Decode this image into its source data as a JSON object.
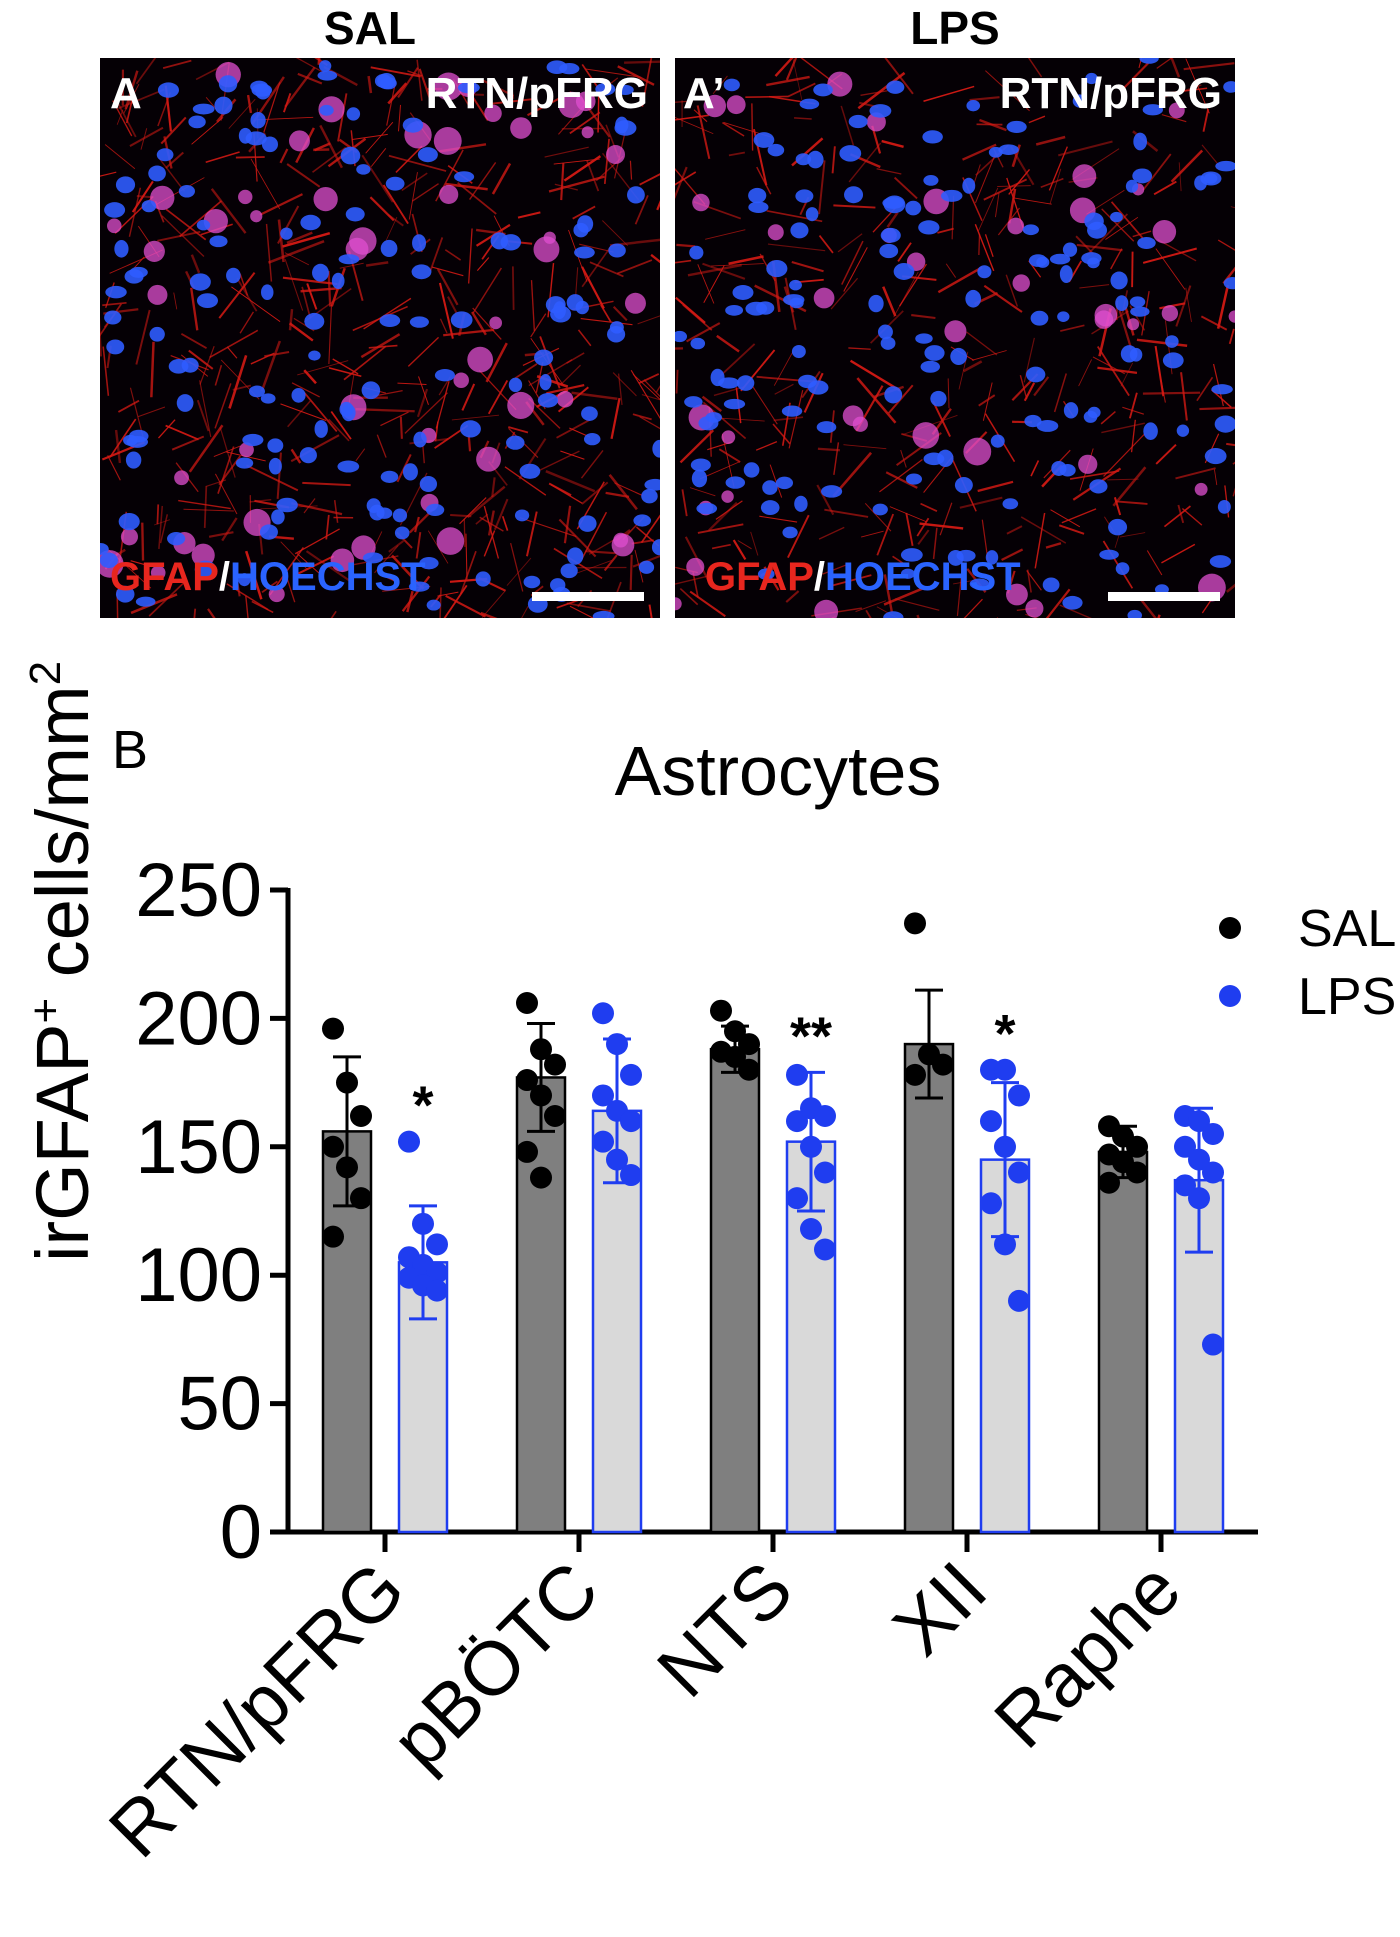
{
  "panel_a": {
    "left": {
      "condition": "SAL",
      "letter": "A",
      "region": "RTN/pFRG",
      "stain_red": "GFAP",
      "stain_sep": "/",
      "stain_blue": "HOECHST"
    },
    "right": {
      "condition": "LPS",
      "letter": "A’",
      "region": "RTN/pFRG",
      "stain_red": "GFAP",
      "stain_sep": "/",
      "stain_blue": "HOECHST"
    },
    "colors": {
      "stain_red": "#e8261e",
      "stain_blue": "#2a63ff",
      "nuclei": "#2f5cff",
      "fibers": "#d51a14",
      "background": "#050005"
    }
  },
  "panel_b_letter": "B",
  "chart_data": {
    "type": "bar",
    "title": "Astrocytes",
    "ylabel": "irGFAP⁺ cells/mm²",
    "ylabel_main": "irGFAP",
    "ylabel_sup1": "+",
    "ylabel_mid": " cells/mm",
    "ylabel_sup2": "2",
    "xlabel": "",
    "ylim": [
      0,
      250
    ],
    "yticks": [
      0,
      50,
      100,
      150,
      200,
      250
    ],
    "legend_position": "top-right",
    "categories": [
      "RTN/pFRG",
      "pBÖTC",
      "NTS",
      "XII",
      "Raphe"
    ],
    "series": [
      {
        "name": "SAL",
        "color": "#000000",
        "bar_color": "#7f7f7f",
        "bar_edge": "#000000",
        "values": [
          156,
          177,
          188,
          190,
          148
        ],
        "errors": [
          29,
          21,
          9,
          21,
          10
        ],
        "points": [
          [
            196,
            175,
            162,
            150,
            142,
            130,
            115
          ],
          [
            206,
            188,
            182,
            176,
            170,
            162,
            148,
            138
          ],
          [
            203,
            195,
            190,
            187,
            185,
            180
          ],
          [
            237,
            186,
            182,
            178
          ],
          [
            158,
            154,
            150,
            147,
            144,
            140,
            136
          ]
        ]
      },
      {
        "name": "LPS",
        "color": "#1f3df0",
        "bar_color": "#d9d9d9",
        "bar_edge": "#1f3df0",
        "values": [
          105,
          164,
          152,
          145,
          137
        ],
        "errors": [
          22,
          28,
          27,
          30,
          28
        ],
        "points": [
          [
            152,
            120,
            112,
            107,
            104,
            101,
            99,
            96,
            94
          ],
          [
            202,
            190,
            178,
            170,
            164,
            160,
            152,
            145,
            139
          ],
          [
            178,
            165,
            162,
            160,
            150,
            140,
            130,
            118,
            110
          ],
          [
            180,
            180,
            170,
            160,
            150,
            140,
            128,
            112,
            90
          ],
          [
            162,
            160,
            155,
            150,
            145,
            140,
            135,
            130,
            73
          ]
        ]
      }
    ],
    "annotations": [
      "*",
      "",
      "**",
      "*",
      ""
    ]
  }
}
